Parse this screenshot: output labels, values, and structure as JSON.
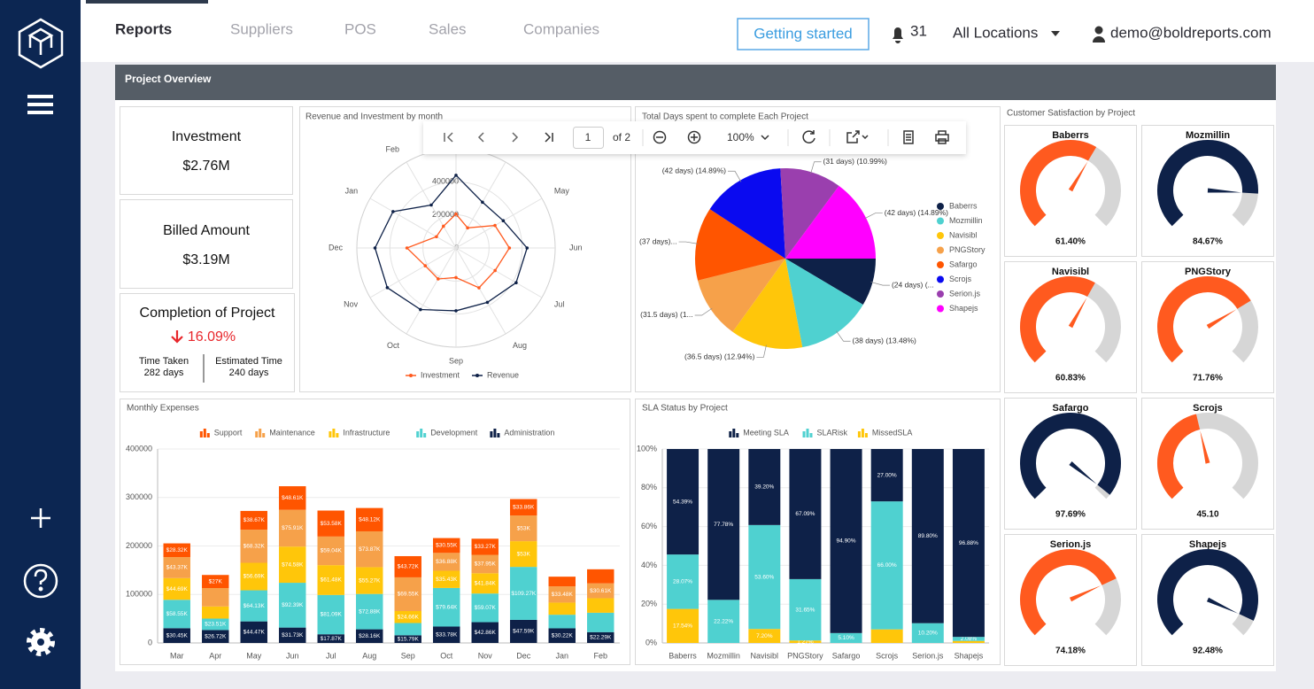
{
  "nav": {
    "tabs": [
      "Reports",
      "Suppliers",
      "POS",
      "Sales",
      "Companies"
    ],
    "getting_started": "Getting started",
    "notifications": "31",
    "location": "All Locations",
    "user": "demo@boldreports.com"
  },
  "header": {
    "title": "Project Overview"
  },
  "kpis": [
    {
      "label": "Investment",
      "value": "$2.76M"
    },
    {
      "label": "Billed Amount",
      "value": "$3.19M"
    }
  ],
  "completion": {
    "label": "Completion of Project",
    "value": "16.09%",
    "time_taken": {
      "label": "Time Taken",
      "value": "282 days"
    },
    "estimated_time": {
      "label": "Estimated Time",
      "value": "240 days"
    }
  },
  "toolbar": {
    "page": "1",
    "of": "of 2",
    "zoom": "100%"
  },
  "chart_data": [
    {
      "type": "radar",
      "title": "Revenue and Investment by month",
      "categories": [
        null,
        null,
        "May",
        "Jun",
        "Jul",
        "Aug",
        "Sep",
        "Oct",
        "Nov",
        "Dec",
        "Jan",
        "Feb"
      ],
      "series": [
        {
          "name": "Investment",
          "color": "#ff5a1f",
          "values": [
            205380,
            140230,
            272280,
            323220,
            273060,
            278300,
            179020,
            216280,
            214990,
            296720,
            136700,
            151900
          ]
        },
        {
          "name": "Revenue",
          "color": "#0e2148",
          "values": [
            440000,
            320000,
            330000,
            430000,
            420000,
            380000,
            380000,
            430000,
            480000,
            490000,
            440000,
            300000
          ]
        }
      ],
      "rlim": [
        0,
        600000
      ],
      "rticks": [
        0,
        200000,
        400000
      ]
    },
    {
      "type": "pie",
      "title": "Total Days spent to complete Each Project",
      "categories": [
        "Baberrs",
        "Mozmillin",
        "Navisibl",
        "PNGStory",
        "Safargo",
        "Scrojs",
        "Serion.js",
        "Shapejs"
      ],
      "values": [
        24,
        38,
        36.5,
        31.5,
        37,
        42,
        31,
        42
      ],
      "value_labels": [
        "(24 days) (...",
        "(38 days) (13.48%)",
        "(36.5 days) (12.94%)",
        "(31.5 days) (1...",
        "(37 days)...",
        "(42 days) (14.89%)",
        "(31 days) (10.99%)",
        "(42 days) (14.89%)"
      ],
      "colors": [
        "#0e2148",
        "#4fd1d0",
        "#ffc60a",
        "#f6a14a",
        "#ff5500",
        "#0a0af0",
        "#9a3fae",
        "#ff00ff"
      ]
    },
    {
      "type": "gauge",
      "title": "Customer Satisfaction by Project",
      "categories": [
        "Baberrs",
        "Mozmillin",
        "Navisibl",
        "PNGStory",
        "Safargo",
        "Scrojs",
        "Serion.js",
        "Shapejs"
      ],
      "values": [
        61.4,
        84.67,
        60.83,
        71.76,
        97.69,
        45.1,
        74.18,
        92.48
      ],
      "value_labels": [
        "61.40%",
        "84.67%",
        "60.83%",
        "71.76%",
        "97.69%",
        "45.10",
        "74.18%",
        "92.48%"
      ],
      "colors": [
        "#ff5a1f",
        "#0e2148",
        "#ff5a1f",
        "#ff5a1f",
        "#0e2148",
        "#ff5a1f",
        "#ff5a1f",
        "#0e2148"
      ],
      "ylim": [
        0,
        100
      ]
    },
    {
      "type": "bar",
      "stacked": true,
      "title": "Monthly Expenses",
      "categories": [
        "Mar",
        "Apr",
        "May",
        "Jun",
        "Jul",
        "Aug",
        "Sep",
        "Oct",
        "Nov",
        "Dec",
        "Jan",
        "Feb"
      ],
      "series": [
        {
          "name": "Support",
          "color": "#ff5500",
          "values": [
            28320,
            27000,
            38670,
            48610,
            53580,
            48120,
            43720,
            30550,
            33270,
            33860,
            20000,
            29000
          ],
          "value_labels": [
            "$28.32K",
            "$27K",
            "$38.67K",
            "$48.61K",
            "$53.58K",
            "$48.12K",
            "$43.72K",
            "$30.55K",
            "$33.27K",
            "$33.86K",
            null,
            null
          ]
        },
        {
          "name": "Maintenance",
          "color": "#f6a14a",
          "values": [
            43370,
            38000,
            68320,
            75910,
            59040,
            73870,
            69550,
            36880,
            37950,
            53000,
            33480,
            30610
          ],
          "value_labels": [
            "$43.37K",
            null,
            "$68.32K",
            "$75.91K",
            "$59.04K",
            "$73.87K",
            "$69.55K",
            "$36.88K",
            "$37.95K",
            "$53K",
            "$33.48K",
            "$30.61K"
          ]
        },
        {
          "name": "Infrastructure",
          "color": "#ffc60a",
          "values": [
            44690,
            25000,
            56690,
            74580,
            61480,
            55270,
            24660,
            35430,
            41840,
            53000,
            25000,
            30000
          ],
          "value_labels": [
            "$44.69K",
            null,
            "$56.69K",
            "$74.58K",
            "$61.48K",
            "$55.27K",
            "$24.66K",
            "$35.43K",
            "$41.84K",
            "$53K",
            null,
            null
          ]
        },
        {
          "name": "Development",
          "color": "#4fd1d0",
          "values": [
            58550,
            23510,
            64130,
            92390,
            81090,
            72880,
            25300,
            79640,
            59070,
            109270,
            28000,
            40000
          ],
          "value_labels": [
            "$58.55K",
            "$23.51K",
            "$64.13K",
            "$92.39K",
            "$81.09K",
            "$72.88K",
            null,
            "$79.64K",
            "$59.07K",
            "$109.27K",
            null,
            null
          ]
        },
        {
          "name": "Administration",
          "color": "#0e2148",
          "values": [
            30450,
            26720,
            44470,
            31730,
            17870,
            28160,
            15790,
            33780,
            42860,
            47590,
            30220,
            22290
          ],
          "value_labels": [
            "$30.45K",
            "$26.72K",
            "$44.47K",
            "$31.73K",
            "$17.87K",
            "$28.16K",
            "$15.79K",
            "$33.78K",
            "$42.86K",
            "$47.59K",
            "$30.22K",
            "$22.29K"
          ]
        }
      ],
      "ylim": [
        0,
        400000
      ],
      "yticks": [
        0,
        100000,
        200000,
        300000,
        400000
      ]
    },
    {
      "type": "bar",
      "stacked": true,
      "title": "SLA Status by Project",
      "categories": [
        "Baberrs",
        "Mozmillin",
        "Navisibl",
        "PNGStory",
        "Safargo",
        "Scrojs",
        "Serion.js",
        "Shapejs"
      ],
      "series": [
        {
          "name": "Meeting SLA",
          "color": "#0e2148",
          "values": [
            54.39,
            77.78,
            39.2,
            67.09,
            94.9,
            27,
            89.8,
            96.88
          ],
          "value_labels": [
            "54.39%",
            "77.78%",
            "39.20%",
            "67.09%",
            "94.90%",
            "27.00%",
            "89.80%",
            "96.88%"
          ]
        },
        {
          "name": "SLARisk",
          "color": "#4fd1d0",
          "values": [
            28.07,
            22.22,
            53.6,
            31.65,
            5.1,
            66,
            10.2,
            2.08
          ],
          "value_labels": [
            "28.07%",
            "22.22%",
            "53.60%",
            "31.65%",
            "5.10%",
            "66.00%",
            "10.20%",
            "2.08%"
          ]
        },
        {
          "name": "MissedSLA",
          "color": "#ffc60a",
          "values": [
            17.54,
            0,
            7.2,
            1.27,
            0,
            7,
            0,
            1.04
          ],
          "value_labels": [
            "17.54%",
            null,
            "7.20%",
            "1.27%",
            null,
            null,
            null,
            null
          ]
        }
      ],
      "ylim": [
        0,
        100
      ],
      "yticks": [
        {
          "value": 0,
          "label": "0%"
        },
        {
          "value": 20,
          "label": "20%"
        },
        {
          "value": 40,
          "label": "40%"
        },
        {
          "value": 60,
          "label": "60%"
        },
        {
          "value": 80,
          "label": "80%"
        },
        {
          "value": 100,
          "label": "100%"
        }
      ]
    }
  ]
}
